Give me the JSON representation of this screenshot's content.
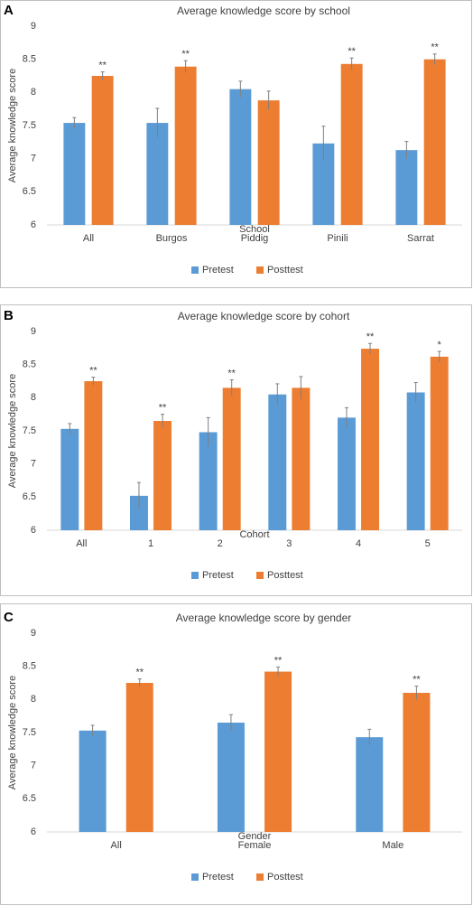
{
  "chart_data": [
    {
      "type": "bar",
      "panel": "A",
      "title": "Average knowledge score by school",
      "x_label": "School",
      "y_label": "Average knowledge score",
      "categories": [
        "All",
        "Burgos",
        "Piddig",
        "Pinili",
        "Sarrat"
      ],
      "series": [
        {
          "name": "Pretest",
          "color": "#5b9bd5",
          "values": [
            7.54,
            7.54,
            8.05,
            7.23,
            7.13
          ],
          "errors": [
            0.08,
            0.22,
            0.12,
            0.26,
            0.13
          ]
        },
        {
          "name": "Posttest",
          "color": "#ed7d31",
          "values": [
            8.25,
            8.39,
            7.88,
            8.43,
            8.5
          ],
          "errors": [
            0.06,
            0.09,
            0.14,
            0.09,
            0.08
          ]
        }
      ],
      "annotations": [
        "**",
        "**",
        null,
        "**",
        "**"
      ],
      "ylim": [
        6,
        9
      ],
      "yticks": [
        6,
        6.5,
        7,
        7.5,
        8,
        8.5,
        9
      ],
      "grid": false
    },
    {
      "type": "bar",
      "panel": "B",
      "title": "Average knowledge score by cohort",
      "x_label": "Cohort",
      "y_label": "Average knowledge score",
      "categories": [
        "All",
        "1",
        "2",
        "3",
        "4",
        "5"
      ],
      "series": [
        {
          "name": "Pretest",
          "color": "#5b9bd5",
          "values": [
            7.53,
            6.52,
            7.48,
            8.05,
            7.7,
            8.08
          ],
          "errors": [
            0.08,
            0.2,
            0.22,
            0.16,
            0.15,
            0.15
          ]
        },
        {
          "name": "Posttest",
          "color": "#ed7d31",
          "values": [
            8.25,
            7.65,
            8.15,
            8.15,
            8.74,
            8.62
          ],
          "errors": [
            0.06,
            0.1,
            0.12,
            0.17,
            0.08,
            0.08
          ]
        }
      ],
      "annotations": [
        "**",
        "**",
        "**",
        null,
        "**",
        "*"
      ],
      "ylim": [
        6,
        9
      ],
      "yticks": [
        6,
        6.5,
        7,
        7.5,
        8,
        8.5,
        9
      ],
      "grid": false
    },
    {
      "type": "bar",
      "panel": "C",
      "title": "Average knowledge score by gender",
      "x_label": "Gender",
      "y_label": "Average knowledge score",
      "categories": [
        "All",
        "Female",
        "Male"
      ],
      "series": [
        {
          "name": "Pretest",
          "color": "#5b9bd5",
          "values": [
            7.53,
            7.65,
            7.43
          ],
          "errors": [
            0.08,
            0.12,
            0.12
          ]
        },
        {
          "name": "Posttest",
          "color": "#ed7d31",
          "values": [
            8.25,
            8.42,
            8.1
          ],
          "errors": [
            0.06,
            0.07,
            0.1
          ]
        }
      ],
      "annotations": [
        "**",
        "**",
        "**"
      ],
      "ylim": [
        6,
        9
      ],
      "yticks": [
        6,
        6.5,
        7,
        7.5,
        8,
        8.5,
        9
      ],
      "grid": false
    }
  ]
}
